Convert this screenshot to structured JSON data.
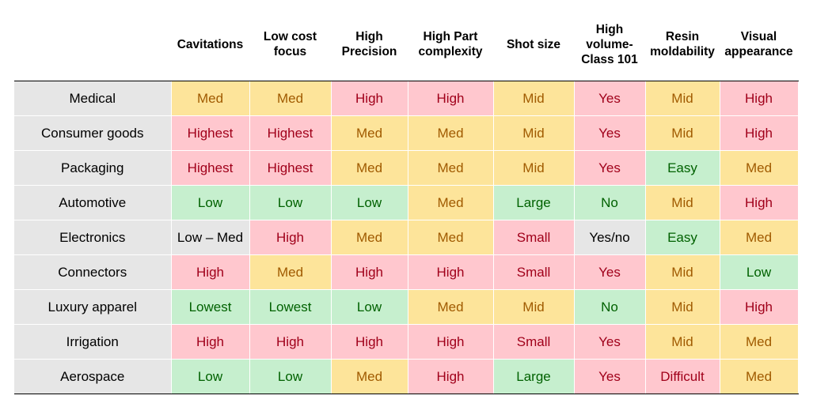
{
  "colors": {
    "Y": {
      "bg": "#fde49a",
      "fg": "#a05a00"
    },
    "R": {
      "bg": "#ffc7ce",
      "fg": "#a0001a"
    },
    "G": {
      "bg": "#c6efce",
      "fg": "#006100"
    },
    "N": {
      "bg": "#e6e6e6",
      "fg": "#000000"
    }
  },
  "columns": [
    "Cavitations",
    "Low cost\nfocus",
    "High\nPrecision",
    "High Part\ncomplexity",
    "Shot size",
    "High\nvolume-\nClass 101",
    "Resin\nmoldability",
    "Visual\nappearance"
  ],
  "rows": [
    {
      "label": "Medical",
      "cells": [
        {
          "v": "Med",
          "c": "Y"
        },
        {
          "v": "Med",
          "c": "Y"
        },
        {
          "v": "High",
          "c": "R"
        },
        {
          "v": "High",
          "c": "R"
        },
        {
          "v": "Mid",
          "c": "Y"
        },
        {
          "v": "Yes",
          "c": "R"
        },
        {
          "v": "Mid",
          "c": "Y"
        },
        {
          "v": "High",
          "c": "R"
        }
      ]
    },
    {
      "label": "Consumer goods",
      "cells": [
        {
          "v": "Highest",
          "c": "R"
        },
        {
          "v": "Highest",
          "c": "R"
        },
        {
          "v": "Med",
          "c": "Y"
        },
        {
          "v": "Med",
          "c": "Y"
        },
        {
          "v": "Mid",
          "c": "Y"
        },
        {
          "v": "Yes",
          "c": "R"
        },
        {
          "v": "Mid",
          "c": "Y"
        },
        {
          "v": "High",
          "c": "R"
        }
      ]
    },
    {
      "label": "Packaging",
      "cells": [
        {
          "v": "Highest",
          "c": "R"
        },
        {
          "v": "Highest",
          "c": "R"
        },
        {
          "v": "Med",
          "c": "Y"
        },
        {
          "v": "Med",
          "c": "Y"
        },
        {
          "v": "Mid",
          "c": "Y"
        },
        {
          "v": "Yes",
          "c": "R"
        },
        {
          "v": "Easy",
          "c": "G"
        },
        {
          "v": "Med",
          "c": "Y"
        }
      ]
    },
    {
      "label": "Automotive",
      "cells": [
        {
          "v": "Low",
          "c": "G"
        },
        {
          "v": "Low",
          "c": "G"
        },
        {
          "v": "Low",
          "c": "G"
        },
        {
          "v": "Med",
          "c": "Y"
        },
        {
          "v": "Large",
          "c": "G"
        },
        {
          "v": "No",
          "c": "G"
        },
        {
          "v": "Mid",
          "c": "Y"
        },
        {
          "v": "High",
          "c": "R"
        }
      ]
    },
    {
      "label": "Electronics",
      "cells": [
        {
          "v": "Low – Med",
          "c": "N"
        },
        {
          "v": "High",
          "c": "R"
        },
        {
          "v": "Med",
          "c": "Y"
        },
        {
          "v": "Med",
          "c": "Y"
        },
        {
          "v": "Small",
          "c": "R"
        },
        {
          "v": "Yes/no",
          "c": "N"
        },
        {
          "v": "Easy",
          "c": "G"
        },
        {
          "v": "Med",
          "c": "Y"
        }
      ]
    },
    {
      "label": "Connectors",
      "cells": [
        {
          "v": "High",
          "c": "R"
        },
        {
          "v": "Med",
          "c": "Y"
        },
        {
          "v": "High",
          "c": "R"
        },
        {
          "v": "High",
          "c": "R"
        },
        {
          "v": "Small",
          "c": "R"
        },
        {
          "v": "Yes",
          "c": "R"
        },
        {
          "v": "Mid",
          "c": "Y"
        },
        {
          "v": "Low",
          "c": "G"
        }
      ]
    },
    {
      "label": "Luxury apparel",
      "cells": [
        {
          "v": "Lowest",
          "c": "G"
        },
        {
          "v": "Lowest",
          "c": "G"
        },
        {
          "v": "Low",
          "c": "G"
        },
        {
          "v": "Med",
          "c": "Y"
        },
        {
          "v": "Mid",
          "c": "Y"
        },
        {
          "v": "No",
          "c": "G"
        },
        {
          "v": "Mid",
          "c": "Y"
        },
        {
          "v": "High",
          "c": "R"
        }
      ]
    },
    {
      "label": "Irrigation",
      "cells": [
        {
          "v": "High",
          "c": "R"
        },
        {
          "v": "High",
          "c": "R"
        },
        {
          "v": "High",
          "c": "R"
        },
        {
          "v": "High",
          "c": "R"
        },
        {
          "v": "Small",
          "c": "R"
        },
        {
          "v": "Yes",
          "c": "R"
        },
        {
          "v": "Mid",
          "c": "Y"
        },
        {
          "v": "Med",
          "c": "Y"
        }
      ]
    },
    {
      "label": "Aerospace",
      "cells": [
        {
          "v": "Low",
          "c": "G"
        },
        {
          "v": "Low",
          "c": "G"
        },
        {
          "v": "Med",
          "c": "Y"
        },
        {
          "v": "High",
          "c": "R"
        },
        {
          "v": "Large",
          "c": "G"
        },
        {
          "v": "Yes",
          "c": "R"
        },
        {
          "v": "Difficult",
          "c": "R"
        },
        {
          "v": "Med",
          "c": "Y"
        }
      ]
    }
  ]
}
